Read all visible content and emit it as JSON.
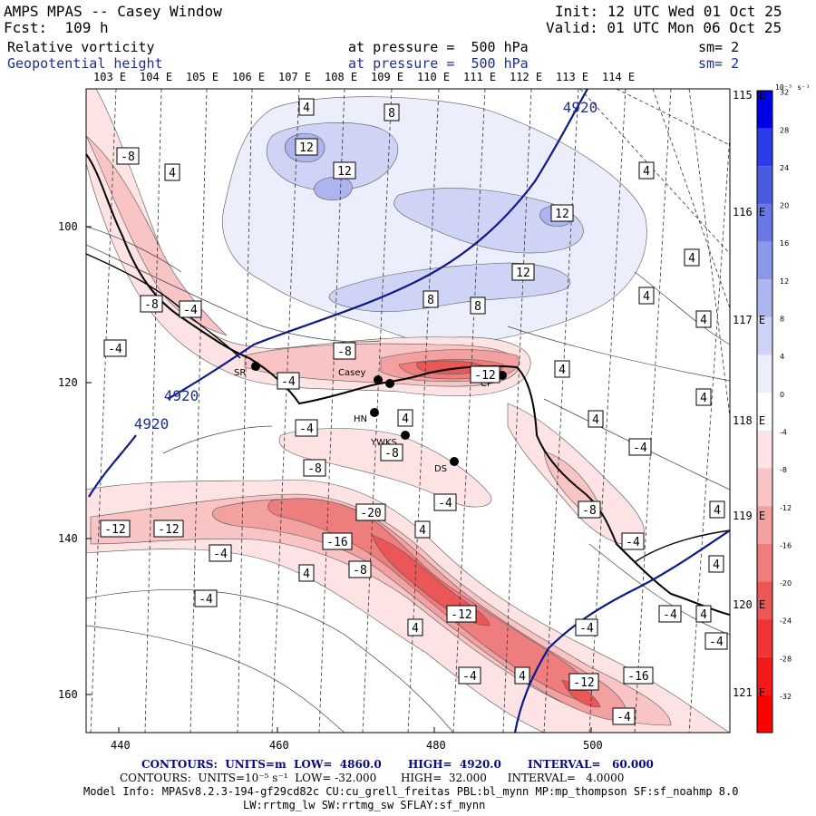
{
  "header": {
    "title": "AMPS MPAS -- Casey Window",
    "fcst": "Fcst:  109 h",
    "init": "Init: 12 UTC Wed 01 Oct 25",
    "valid": "Valid: 01 UTC Mon 06 Oct 25"
  },
  "fields": [
    {
      "name": "Relative vorticity",
      "level": "at pressure =  500 hPa",
      "sm": "sm= 2"
    },
    {
      "name": "Geopotential height",
      "level": "at pressure =  500 hPa",
      "sm": "sm= 2"
    }
  ],
  "top_longitudes": [
    "103 E",
    "104 E",
    "105 E",
    "106 E",
    "107 E",
    "108 E",
    "109 E",
    "110 E",
    "111 E",
    "112 E",
    "113 E",
    "114 E"
  ],
  "right_longitudes": [
    "115 E",
    "116 E",
    "117 E",
    "118 E",
    "119 E",
    "120 E",
    "121 E"
  ],
  "y_ticks": [
    "100",
    "120",
    "140",
    "160"
  ],
  "x_ticks": [
    "440",
    "460",
    "480",
    "500"
  ],
  "colorbar": {
    "unit": "10⁻⁵ s⁻¹",
    "labels": [
      "32",
      "28",
      "24",
      "20",
      "16",
      "12",
      "8",
      "4",
      "0",
      "-4",
      "-8",
      "-12",
      "-16",
      "-20",
      "-24",
      "-28",
      "-32"
    ],
    "colors": [
      "#0000e6",
      "#2a3de8",
      "#4a5be0",
      "#6a78e4",
      "#8b97e8",
      "#adb5ee",
      "#cfd4f6",
      "#eceefb",
      "#ffffff",
      "#fde3e3",
      "#f9c4c4",
      "#f3a0a0",
      "#ee7d7d",
      "#eb5656",
      "#ef3434",
      "#f21a1a",
      "#ff0000"
    ]
  },
  "height_labels": [
    "4920",
    "4920",
    "4920"
  ],
  "vort_labels": [
    "4",
    "8",
    "12",
    "12",
    "12",
    "12",
    "-8",
    "4",
    "4",
    "8",
    "8",
    "-8",
    "-4",
    "4",
    "4",
    "-4",
    "-8",
    "4",
    "-12",
    "-4",
    "4",
    "-4",
    "4",
    "4",
    "-8",
    "4",
    "-4",
    "-8",
    "-4",
    "-8",
    "4",
    "-12",
    "-12",
    "-20",
    "-16",
    "4",
    "-4",
    "4",
    "-8",
    "-4",
    "-4",
    "4",
    "-4",
    "4",
    "-12",
    "-4",
    "-4",
    "4",
    "-4",
    "4",
    "-16",
    "-12",
    "-4"
  ],
  "stations": [
    "SR",
    "Casey",
    "HN",
    "YWKS",
    "DS",
    "CP"
  ],
  "footer": {
    "line1": "CONTOURS:  UNITS=m  LOW=  4860.0       HIGH=  4920.0       INTERVAL=   60.000",
    "line2": "CONTOURS:  UNITS=10⁻⁵ s⁻¹  LOW= -32.000       HIGH=  32.000      INTERVAL=   4.0000",
    "line3": "Model Info: MPASv8.2.3-194-gf29cd82c CU:cu_grell_freitas PBL:bl_mynn MP:mp_thompson SF:sf_noahmp 8.0",
    "line4": "LW:rrtmg_lw SW:rrtmg_sw SFLAY:sf_mynn"
  }
}
